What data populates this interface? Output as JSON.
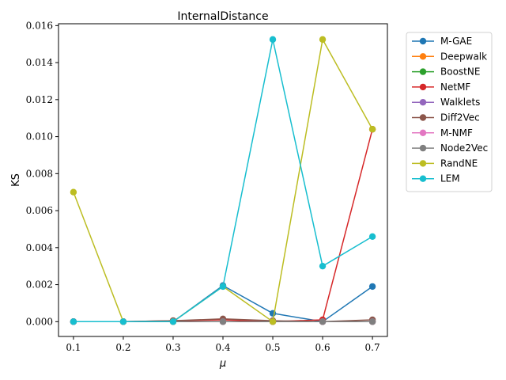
{
  "chart_data": {
    "type": "line",
    "title": "InternalDistance",
    "xlabel": "μ",
    "ylabel": "KS",
    "x": [
      0.1,
      0.2,
      0.3,
      0.4,
      0.5,
      0.6,
      0.7
    ],
    "x_tick_labels": [
      "0.1",
      "0.2",
      "0.3",
      "0.4",
      "0.5",
      "0.6",
      "0.7"
    ],
    "y_ticks": [
      0.0,
      0.002,
      0.004,
      0.006,
      0.008,
      0.01,
      0.012,
      0.014,
      0.016
    ],
    "y_tick_labels": [
      "0.000",
      "0.002",
      "0.004",
      "0.006",
      "0.008",
      "0.010",
      "0.012",
      "0.014",
      "0.016"
    ],
    "xlim": [
      0.07,
      0.73
    ],
    "ylim": [
      -0.0008,
      0.0161
    ],
    "grid": false,
    "legend_position": "outside-right",
    "series": [
      {
        "name": "M-GAE",
        "color": "#1f77b4",
        "values": [
          0.0,
          0.0,
          0.0,
          0.00195,
          0.00045,
          0.0,
          0.0019
        ]
      },
      {
        "name": "Deepwalk",
        "color": "#ff7f0e",
        "values": [
          0.0,
          0.0,
          0.0,
          0.0,
          0.0,
          0.0,
          0.0
        ]
      },
      {
        "name": "BoostNE",
        "color": "#2ca02c",
        "values": [
          0.0,
          0.0,
          0.0,
          0.0,
          0.0,
          0.0,
          0.0
        ]
      },
      {
        "name": "NetMF",
        "color": "#d62728",
        "values": [
          0.0,
          0.0,
          5e-05,
          0.0001,
          0.0,
          0.0001,
          0.0104
        ]
      },
      {
        "name": "Walklets",
        "color": "#9467bd",
        "values": [
          0.0,
          0.0,
          0.0,
          0.0,
          0.0,
          0.0,
          0.0
        ]
      },
      {
        "name": "Diff2Vec",
        "color": "#8c564b",
        "values": [
          0.0,
          0.0,
          5e-05,
          0.00015,
          5e-05,
          0.0,
          0.0001
        ]
      },
      {
        "name": "M-NMF",
        "color": "#e377c2",
        "values": [
          0.0,
          0.0,
          0.0,
          0.0,
          0.0,
          0.0,
          0.0
        ]
      },
      {
        "name": "Node2Vec",
        "color": "#7f7f7f",
        "values": [
          0.0,
          0.0,
          0.0,
          0.0,
          0.0,
          0.0,
          0.0
        ]
      },
      {
        "name": "RandNE",
        "color": "#bcbd22",
        "values": [
          0.007,
          0.0,
          0.0,
          0.0019,
          0.0,
          0.01525,
          0.0104
        ]
      },
      {
        "name": "LEM",
        "color": "#17becf",
        "values": [
          0.0,
          0.0,
          0.0,
          0.0019,
          0.01525,
          0.003,
          0.0046
        ]
      }
    ]
  }
}
